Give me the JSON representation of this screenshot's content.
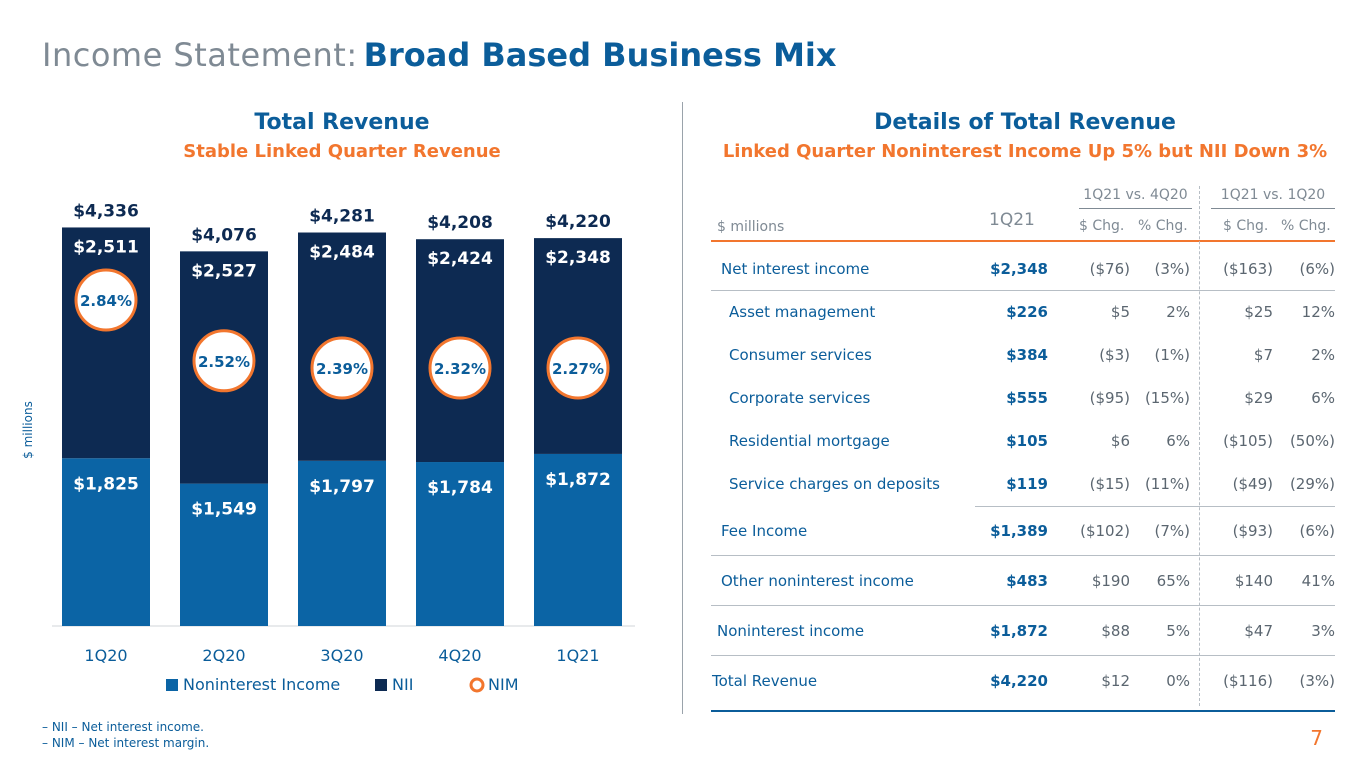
{
  "title": {
    "prefix": "Income Statement:",
    "main": "Broad Based Business Mix"
  },
  "left_panel": {
    "title": "Total Revenue",
    "subtitle": "Stable Linked Quarter Revenue"
  },
  "right_panel": {
    "title": "Details of Total Revenue",
    "subtitle": "Linked Quarter Noninterest Income Up 5% but NII Down 3%"
  },
  "chart_data": {
    "type": "bar",
    "stacked": true,
    "categories": [
      "1Q20",
      "2Q20",
      "3Q20",
      "4Q20",
      "1Q21"
    ],
    "series": [
      {
        "name": "Noninterest Income",
        "color": "#0b64a5",
        "values": [
          1825,
          1549,
          1797,
          1784,
          1872
        ],
        "labels": [
          "$1,825",
          "$1,549",
          "$1,797",
          "$1,784",
          "$1,872"
        ]
      },
      {
        "name": "NII",
        "color": "#0d2a52",
        "values": [
          2511,
          2527,
          2484,
          2424,
          2348
        ],
        "labels": [
          "$2,511",
          "$2,527",
          "$2,484",
          "$2,424",
          "$2,348"
        ]
      }
    ],
    "totals": [
      "$4,336",
      "$4,076",
      "$4,281",
      "$4,208",
      "$4,220"
    ],
    "total_values": [
      4336,
      4076,
      4281,
      4208,
      4220
    ],
    "nim": {
      "name": "NIM",
      "color": "#f2762e",
      "values": [
        2.84,
        2.52,
        2.39,
        2.32,
        2.27
      ],
      "labels": [
        "2.84%",
        "2.52%",
        "2.39%",
        "2.32%",
        "2.27%"
      ]
    },
    "ylabel": "$ millions",
    "ylim": [
      0,
      4700
    ],
    "legend": [
      "Noninterest Income",
      "NII",
      "NIM"
    ],
    "legend_position": "bottom"
  },
  "table": {
    "header": {
      "units": "$ millions",
      "col_1q21": "1Q21",
      "group1": "1Q21 vs. 4Q20",
      "group2": "1Q21 vs. 1Q20",
      "chg": "$ Chg.",
      "pct": "% Chg."
    },
    "rows": [
      {
        "label": "Net interest income",
        "q": "$2,348",
        "c1": "($76)",
        "p1": "(3%)",
        "c2": "($163)",
        "p2": "(6%)"
      },
      {
        "label": "Asset management",
        "q": "$226",
        "c1": "$5",
        "p1": "2%",
        "c2": "$25",
        "p2": "12%"
      },
      {
        "label": "Consumer services",
        "q": "$384",
        "c1": "($3)",
        "p1": "(1%)",
        "c2": "$7",
        "p2": "2%"
      },
      {
        "label": "Corporate services",
        "q": "$555",
        "c1": "($95)",
        "p1": "(15%)",
        "c2": "$29",
        "p2": "6%"
      },
      {
        "label": "Residential mortgage",
        "q": "$105",
        "c1": "$6",
        "p1": "6%",
        "c2": "($105)",
        "p2": "(50%)"
      },
      {
        "label": "Service charges on deposits",
        "q": "$119",
        "c1": "($15)",
        "p1": "(11%)",
        "c2": "($49)",
        "p2": "(29%)"
      },
      {
        "label": "Fee Income",
        "q": "$1,389",
        "c1": "($102)",
        "p1": "(7%)",
        "c2": "($93)",
        "p2": "(6%)"
      },
      {
        "label": "Other noninterest income",
        "q": "$483",
        "c1": "$190",
        "p1": "65%",
        "c2": "$140",
        "p2": "41%"
      },
      {
        "label": "Noninterest income",
        "q": "$1,872",
        "c1": "$88",
        "p1": "5%",
        "c2": "$47",
        "p2": "3%"
      },
      {
        "label": "Total Revenue",
        "q": "$4,220",
        "c1": "$12",
        "p1": "0%",
        "c2": "($116)",
        "p2": "(3%)"
      }
    ]
  },
  "footnotes": [
    "– NII – Net interest income.",
    "– NIM – Net interest margin."
  ],
  "page_number": "7"
}
